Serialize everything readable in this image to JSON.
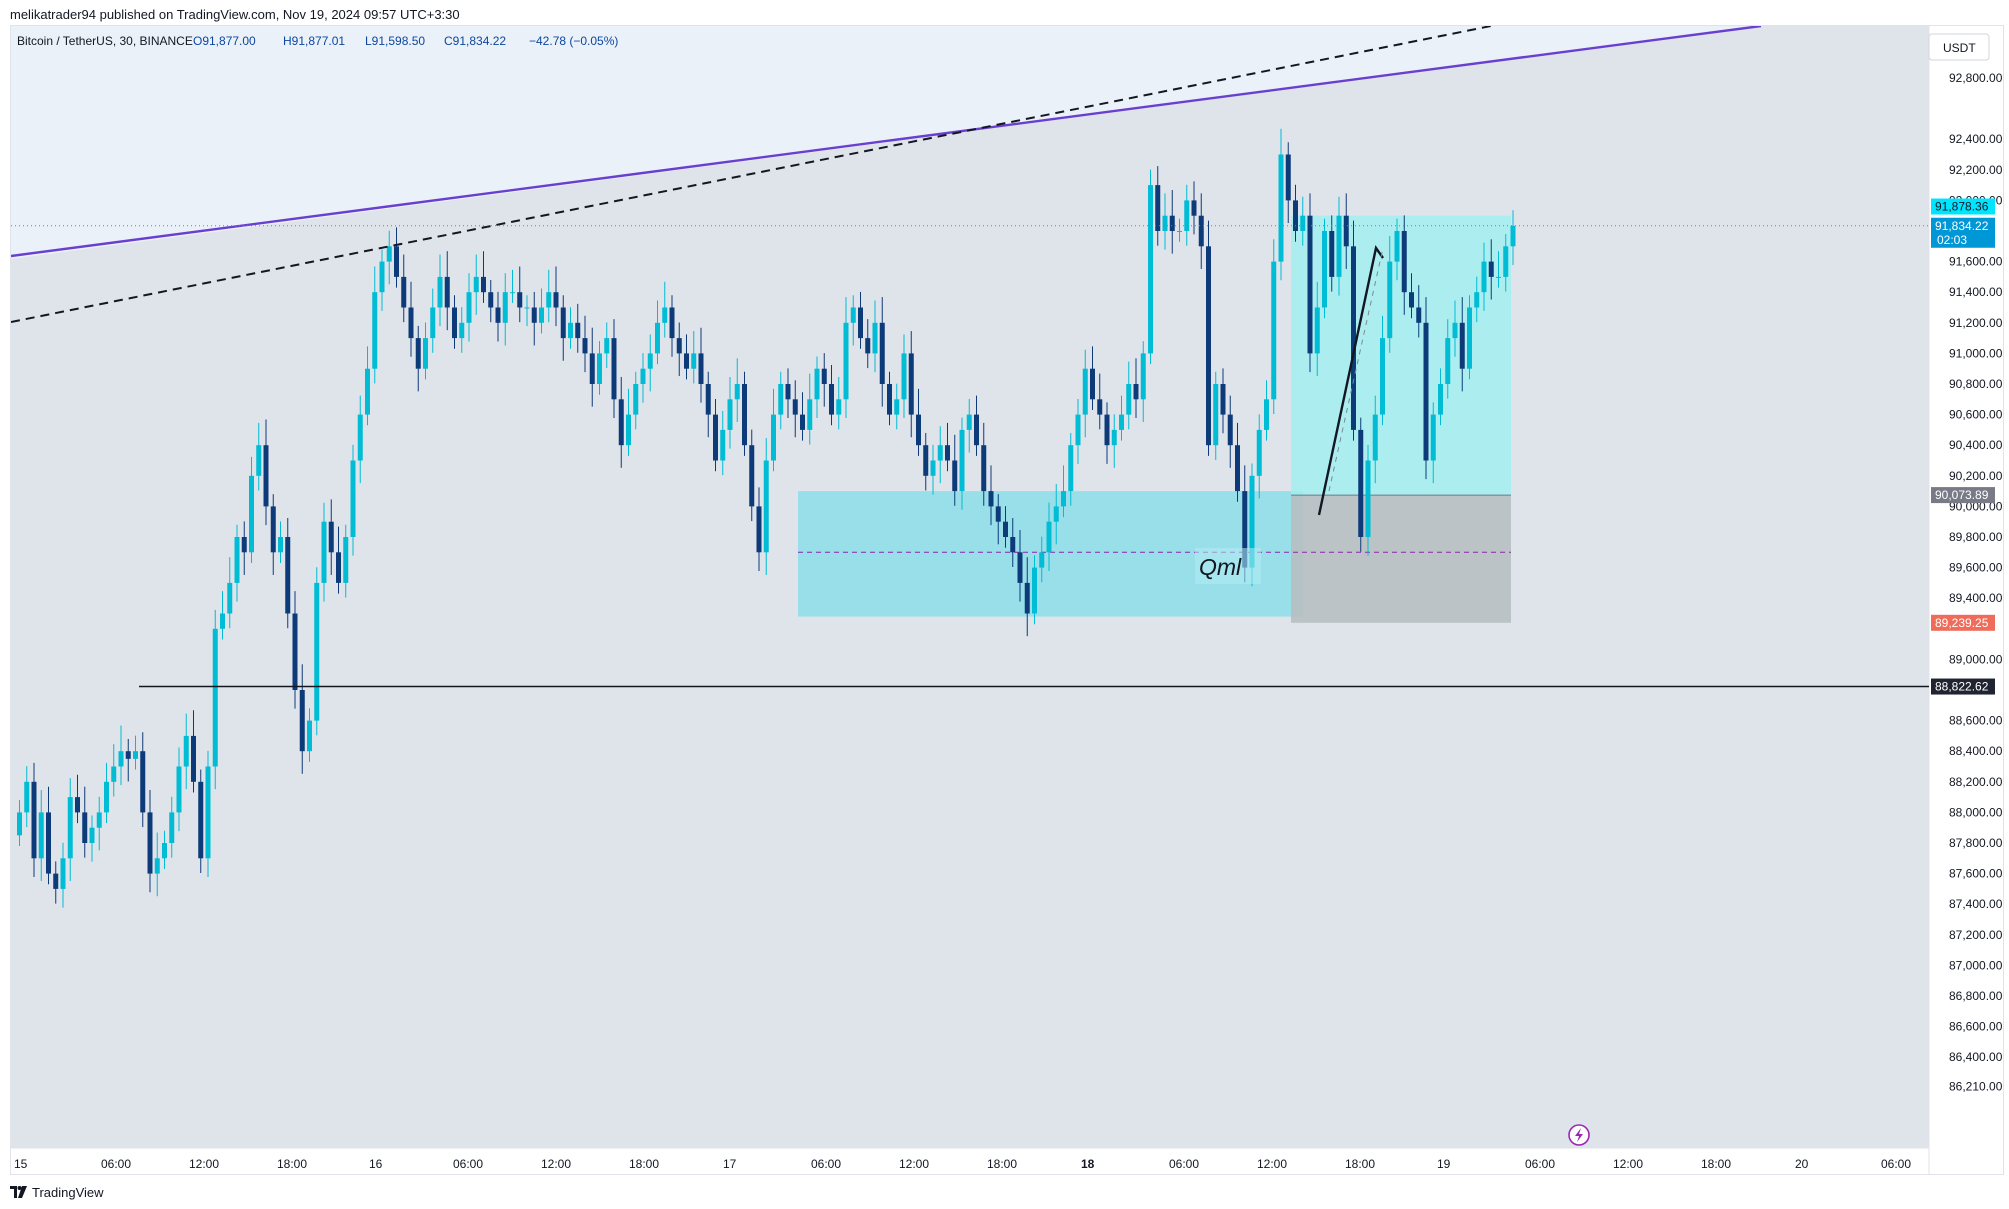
{
  "header": {
    "published": "melikatrader94 published on TradingView.com, Nov 19, 2024 09:57 UTC+3:30"
  },
  "legend": {
    "symbol": "Bitcoin / TetherUS, 30, BINANCE",
    "open": "O91,877.00",
    "high": "H91,877.01",
    "low": "L91,598.50",
    "close": "C91,834.22",
    "change": "−42.78 (−0.05%)"
  },
  "currency_badge": "USDT",
  "price_tags": {
    "high_tag": "91,878.36",
    "last_price": "91,834.22",
    "countdown": "02:03",
    "gray_tag": "90,073.89",
    "red_tag": "89,239.25",
    "dark_tag": "88,822.62"
  },
  "annotation": "Qml",
  "footer": {
    "brand": "TradingView"
  },
  "colors": {
    "bull": "#00bcd4",
    "bear": "#0d3b7a",
    "zone": "#80deea",
    "trendline": "#6a3fd0",
    "background": "#dfe3ea"
  },
  "chart_data": {
    "type": "candlestick",
    "symbol": "Bitcoin / TetherUS",
    "timeframe": "30",
    "exchange": "BINANCE",
    "y_ticks": [
      92800,
      92400,
      92200,
      92000,
      91600,
      91400,
      91200,
      91000,
      90800,
      90600,
      90400,
      90200,
      90000,
      89800,
      89600,
      89400,
      89000,
      88600,
      88400,
      88200,
      88000,
      87800,
      87600,
      87400,
      87200,
      87000,
      86800,
      86600,
      86400,
      86210
    ],
    "y_tick_labels": [
      "92,800.00",
      "92,400.00",
      "92,200.00",
      "92,000.00",
      "91,600.00",
      "91,400.00",
      "91,200.00",
      "91,000.00",
      "90,800.00",
      "90,600.00",
      "90,400.00",
      "90,200.00",
      "90,000.00",
      "89,800.00",
      "89,600.00",
      "89,400.00",
      "89,000.00",
      "88,600.00",
      "88,400.00",
      "88,200.00",
      "88,000.00",
      "87,800.00",
      "87,600.00",
      "87,400.00",
      "87,200.00",
      "87,000.00",
      "86,800.00",
      "86,600.00",
      "86,400.00",
      "86,210.00"
    ],
    "x_ticks": [
      "15",
      "06:00",
      "12:00",
      "18:00",
      "16",
      "06:00",
      "12:00",
      "18:00",
      "17",
      "06:00",
      "12:00",
      "18:00",
      "18",
      "06:00",
      "12:00",
      "18:00",
      "19",
      "06:00",
      "12:00",
      "18:00",
      "20",
      "06:00"
    ],
    "bold_x_ticks": [
      "18"
    ],
    "horizontal_level": 88822.62,
    "zones": [
      {
        "top": 90100,
        "bottom": 89280
      },
      {
        "top": 91900,
        "bottom": 90073.89
      },
      {
        "top": 90073.89,
        "bottom": 89239.25
      }
    ],
    "qml_level": 89700,
    "closes": [
      88000,
      88200,
      87700,
      88000,
      87600,
      87500,
      87700,
      88100,
      88000,
      87800,
      87900,
      88000,
      88200,
      88300,
      88400,
      88350,
      88400,
      88000,
      87600,
      87700,
      87800,
      88000,
      88300,
      88500,
      88200,
      87700,
      88300,
      89200,
      89300,
      89500,
      89800,
      89700,
      90200,
      90400,
      90000,
      89700,
      89800,
      89300,
      88800,
      88400,
      88600,
      89500,
      89900,
      89700,
      89500,
      89800,
      90300,
      90600,
      90900,
      91400,
      91600,
      91700,
      91500,
      91300,
      91100,
      90900,
      91100,
      91300,
      91500,
      91300,
      91100,
      91200,
      91400,
      91500,
      91400,
      91300,
      91200,
      91400,
      91400,
      91300,
      91300,
      91200,
      91300,
      91400,
      91300,
      91100,
      91200,
      91100,
      91000,
      90800,
      91000,
      91100,
      90700,
      90400,
      90600,
      90800,
      90900,
      91000,
      91200,
      91300,
      91100,
      91000,
      90900,
      91000,
      90800,
      90600,
      90300,
      90500,
      90700,
      90800,
      90400,
      90000,
      89700,
      90300,
      90600,
      90800,
      90700,
      90600,
      90500,
      90700,
      90900,
      90800,
      90600,
      90700,
      91200,
      91300,
      91100,
      91000,
      91200,
      90800,
      90600,
      90700,
      91000,
      90600,
      90400,
      90200,
      90300,
      90400,
      90300,
      90100,
      90500,
      90600,
      90400,
      90100,
      90000,
      89900,
      89800,
      89700,
      89500,
      89300,
      89600,
      89700,
      89900,
      90000,
      90100,
      90400,
      90600,
      90900,
      90700,
      90600,
      90400,
      90500,
      90600,
      90800,
      90700,
      91000,
      92100,
      91800,
      91900,
      91800,
      91800,
      92000,
      91900,
      91700,
      90400,
      90800,
      90600,
      90400,
      90100,
      89600,
      90200,
      90500,
      90700,
      91600,
      92300,
      92000,
      91800,
      91900,
      91000,
      91300,
      91800,
      91500,
      91900,
      91700,
      90500,
      89800,
      90300,
      90600,
      91100,
      91600,
      91800,
      91400,
      91300,
      91200,
      90300,
      90600,
      90800,
      91100,
      91200,
      90900,
      91300,
      91400,
      91600,
      91500,
      91500,
      91700,
      91834
    ]
  }
}
